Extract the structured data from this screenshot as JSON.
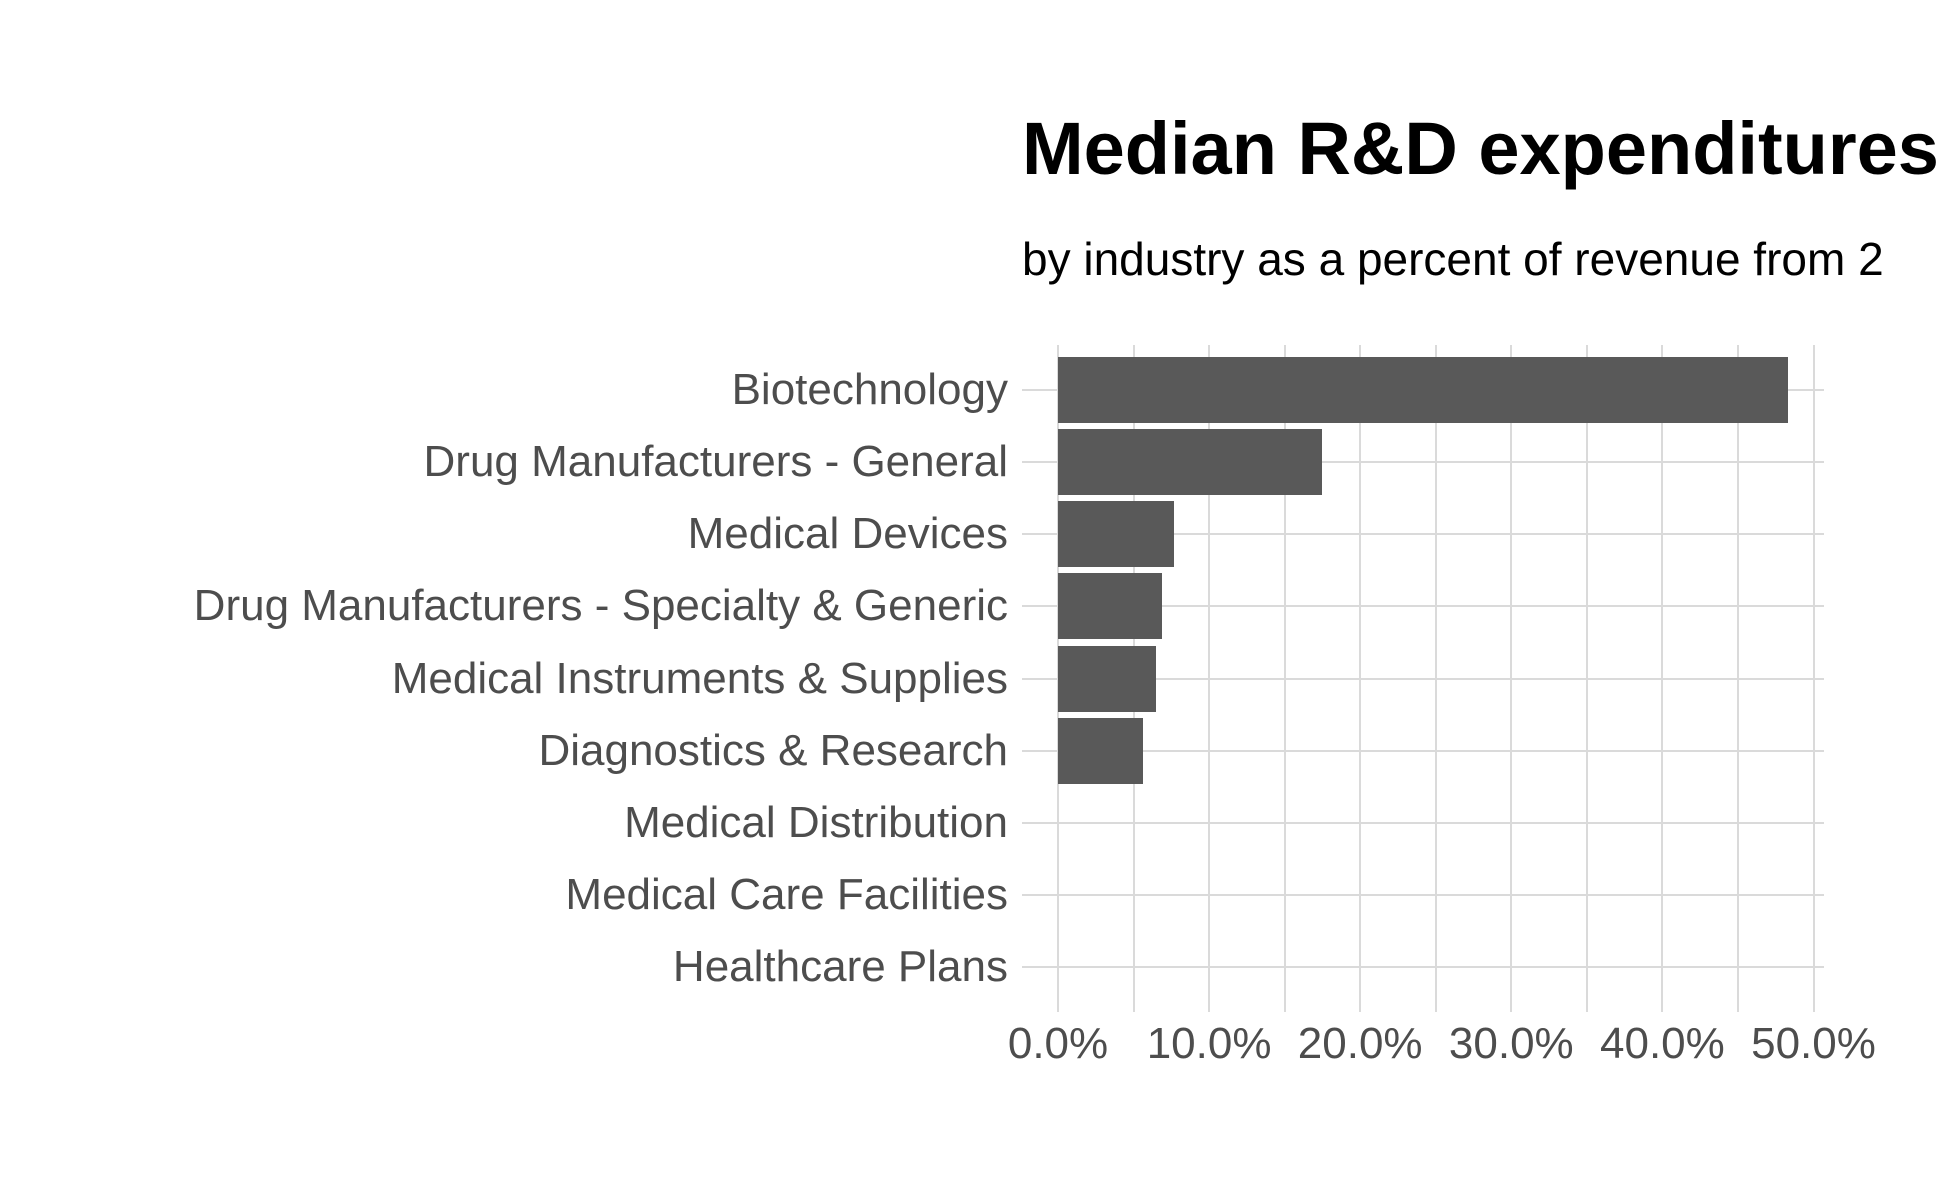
{
  "chart": {
    "title": "Median R&D expenditures",
    "subtitle": "by industry as a percent of revenue from 2"
  },
  "chart_data": {
    "type": "bar",
    "orientation": "horizontal",
    "title": "Median R&D expenditures",
    "subtitle": "by industry as a percent of revenue from 2",
    "categories": [
      "Biotechnology",
      "Drug Manufacturers - General",
      "Medical Devices",
      "Drug Manufacturers - Specialty & Generic",
      "Medical Instruments & Supplies",
      "Diagnostics & Research",
      "Medical Distribution",
      "Medical Care Facilities",
      "Healthcare Plans"
    ],
    "values_pct": [
      48.3,
      17.5,
      7.7,
      6.9,
      6.5,
      5.6,
      0,
      0,
      0
    ],
    "xlabel": "",
    "ylabel": "",
    "x_tick_labels": [
      "0.0%",
      "10.0%",
      "20.0%",
      "30.0%",
      "40.0%",
      "50.0%"
    ],
    "x_tick_values_pct": [
      0,
      10,
      20,
      30,
      40,
      50
    ],
    "xlim_pct": [
      0,
      50
    ],
    "gridline_step_pct": 5,
    "grid": "on",
    "legend": "none",
    "colors": {
      "bar_fill": "#595959",
      "grid_line": "#DADADA",
      "axis_text": "#4D4D4D",
      "title_text": "#000000",
      "background": "#FFFFFF"
    }
  }
}
